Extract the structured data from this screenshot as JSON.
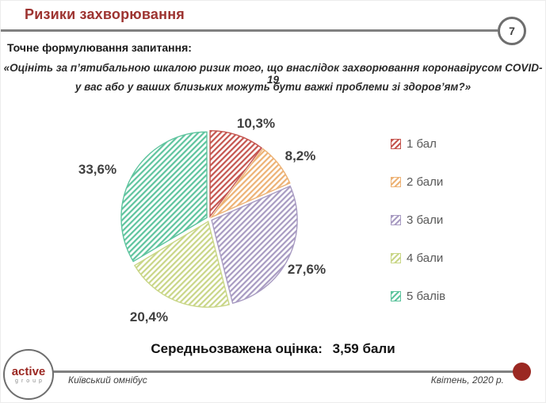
{
  "header": {
    "title": "Ризики захворювання",
    "slide_number": "7"
  },
  "question": {
    "label": "Точне формулювання запитання:",
    "quote_line1": "«Оцініть за п’ятибальною шкалою ризик того, що внаслідок захворювання коронавірусом COVID-19",
    "quote_line2": "у вас або у ваших близьких можуть бути важкі проблеми зі здоров’ям?»"
  },
  "chart_data": {
    "type": "pie",
    "title": "",
    "categories": [
      "1 бал",
      "2 бали",
      "3 бали",
      "4 бали",
      "5 балів"
    ],
    "values": [
      10.3,
      8.2,
      27.6,
      20.4,
      33.6
    ],
    "value_labels": [
      "10,3%",
      "8,2%",
      "27,6%",
      "20,4%",
      "33,6%"
    ],
    "colors": [
      "#c5554f",
      "#edb275",
      "#a89bc2",
      "#c9d687",
      "#5ec49e"
    ],
    "hatch_style": "diagonal-up",
    "start_angle_deg": 0,
    "direction": "clockwise",
    "legend_position": "right"
  },
  "summary": {
    "average_label": "Середньозважена оцінка:",
    "average_value": "3,59 бали"
  },
  "footer": {
    "logo_line1": "active",
    "logo_line2": "group",
    "project": "Київський омнібус",
    "date": "Квітень, 2020 р."
  },
  "colors": {
    "title_red": "#9d3330",
    "accent_dark_red": "#9b2822",
    "line_gray": "#808080",
    "label_gray": "#3f3f3f",
    "legend_text_gray": "#595959"
  }
}
